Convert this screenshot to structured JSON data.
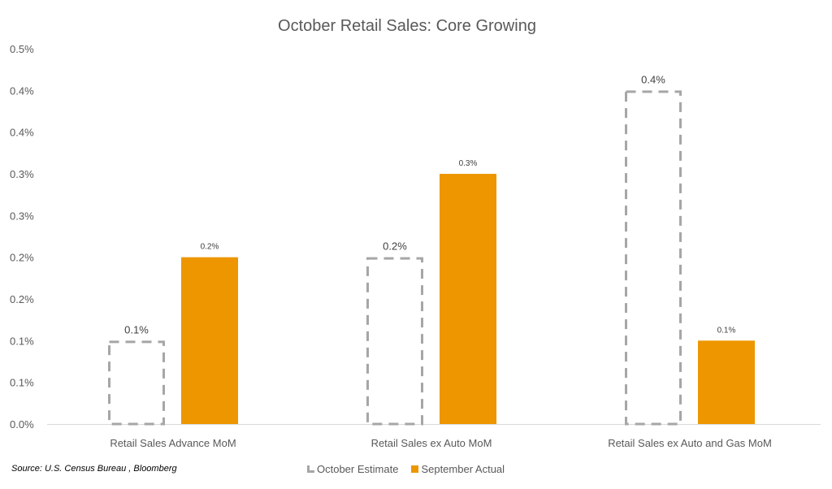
{
  "chart_data": {
    "type": "bar",
    "title": "October Retail Sales: Core Growing",
    "xlabel": "",
    "ylabel": "",
    "ylim": [
      0,
      0.45
    ],
    "ytick_step": 0.05,
    "ytick_labels": [
      "0.0%",
      "0.1%",
      "0.1%",
      "0.2%",
      "0.2%",
      "0.3%",
      "0.3%",
      "0.4%",
      "0.4%",
      "0.5%"
    ],
    "categories": [
      "Retail Sales Advance MoM",
      "Retail Sales ex Auto MoM",
      "Retail Sales ex Auto and Gas MoM"
    ],
    "series": [
      {
        "name": "October Estimate",
        "style": "dashed-outline",
        "color": "#a6a6a6",
        "values": [
          0.1,
          0.2,
          0.4
        ],
        "labels": [
          "0.1%",
          "0.2%",
          "0.4%"
        ]
      },
      {
        "name": "September Actual",
        "style": "solid",
        "color": "#ed9600",
        "values": [
          0.2,
          0.3,
          0.1
        ],
        "labels": [
          "0.2%",
          "0.3%",
          "0.1%"
        ]
      }
    ],
    "grid": false,
    "legend_position": "bottom"
  },
  "source": "Source: U.S. Census Bureau , Bloomberg"
}
